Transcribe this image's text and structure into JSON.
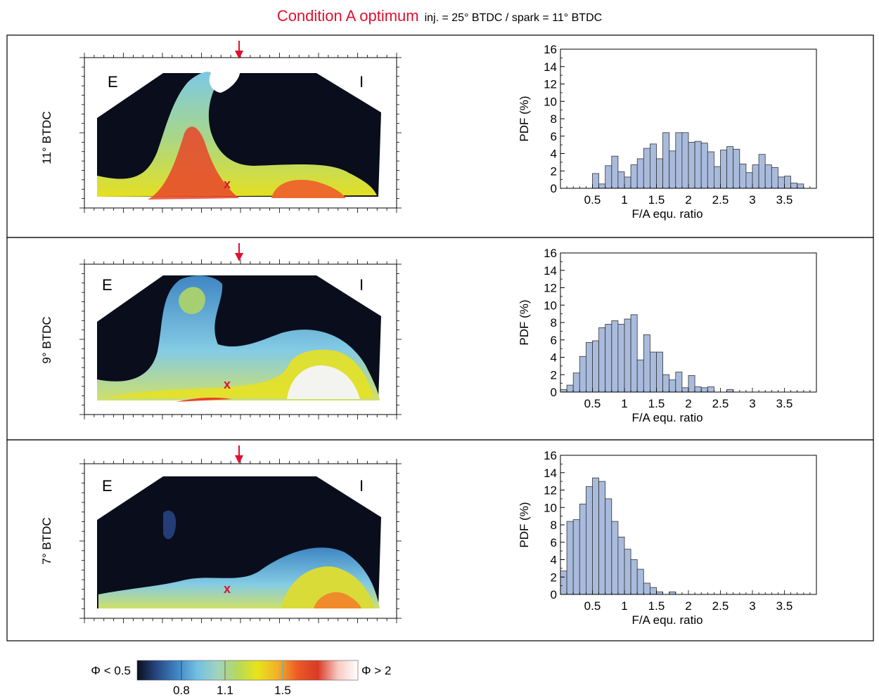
{
  "figure": {
    "title": "Condition A optimum",
    "subtitle": "inj. = 25° BTDC / spark = 11° BTDC",
    "accent_color": "#e0102f",
    "bar_color": "#a9bbdd"
  },
  "panels": [
    {
      "row_label": "11° BTDC",
      "image": {
        "left_marker": "E",
        "right_marker": "I",
        "spark_marker": "x",
        "arrow_icon": "down-arrow-icon"
      },
      "chart_data": {
        "type": "bar",
        "xlabel": "F/A equ. ratio",
        "ylabel": "PDF (%)",
        "ylim": [
          0,
          16
        ],
        "xlim": [
          0,
          4
        ],
        "yticks": [
          "0",
          "2",
          "4",
          "6",
          "8",
          "10",
          "12",
          "14",
          "16"
        ],
        "xticks": [
          "0.5",
          "1",
          "1.5",
          "2",
          "2.5",
          "3",
          "3.5"
        ],
        "bin_width": 0.1,
        "x": [
          0.5,
          0.6,
          0.7,
          0.8,
          0.9,
          1.0,
          1.1,
          1.2,
          1.3,
          1.4,
          1.5,
          1.6,
          1.7,
          1.8,
          1.9,
          2.0,
          2.1,
          2.2,
          2.3,
          2.4,
          2.5,
          2.6,
          2.7,
          2.8,
          2.9,
          3.0,
          3.1,
          3.2,
          3.3,
          3.4,
          3.5,
          3.6,
          3.7
        ],
        "values": [
          1.7,
          0.5,
          2.6,
          3.7,
          1.9,
          1.3,
          2.7,
          3.4,
          4.6,
          5.1,
          3.4,
          6.4,
          4.3,
          6.4,
          6.4,
          5.3,
          5.4,
          5.2,
          4.2,
          2.5,
          4.4,
          4.8,
          4.5,
          2.8,
          1.8,
          2.7,
          3.9,
          2.7,
          2.4,
          1.3,
          1.4,
          0.6,
          0.5
        ]
      }
    },
    {
      "row_label": "9° BTDC",
      "image": {
        "left_marker": "E",
        "right_marker": "I",
        "spark_marker": "x",
        "arrow_icon": "down-arrow-icon"
      },
      "chart_data": {
        "type": "bar",
        "xlabel": "F/A equ. ratio",
        "ylabel": "PDF (%)",
        "ylim": [
          0,
          16
        ],
        "xlim": [
          0,
          4
        ],
        "yticks": [
          "0",
          "2",
          "4",
          "6",
          "8",
          "10",
          "12",
          "14",
          "16"
        ],
        "xticks": [
          "0.5",
          "1",
          "1.5",
          "2",
          "2.5",
          "3",
          "3.5"
        ],
        "bin_width": 0.1,
        "x": [
          0.0,
          0.1,
          0.2,
          0.3,
          0.4,
          0.5,
          0.6,
          0.7,
          0.8,
          0.9,
          1.0,
          1.1,
          1.2,
          1.3,
          1.4,
          1.5,
          1.6,
          1.7,
          1.8,
          1.9,
          2.0,
          2.1,
          2.2,
          2.3,
          2.4,
          2.5,
          2.6
        ],
        "values": [
          0.3,
          0.8,
          2.2,
          4.1,
          5.7,
          5.9,
          7.4,
          7.8,
          8.2,
          7.8,
          8.4,
          8.9,
          3.7,
          6.6,
          4.6,
          4.6,
          2.0,
          1.4,
          2.3,
          0.5,
          1.9,
          0.6,
          0.5,
          0.6,
          0.0,
          0.0,
          0.3
        ]
      }
    },
    {
      "row_label": "7° BTDC",
      "image": {
        "left_marker": "E",
        "right_marker": "I",
        "spark_marker": "x",
        "arrow_icon": "down-arrow-icon"
      },
      "chart_data": {
        "type": "bar",
        "xlabel": "F/A equ. ratio",
        "ylabel": "PDF (%)",
        "ylim": [
          0,
          16
        ],
        "xlim": [
          0,
          4
        ],
        "yticks": [
          "0",
          "2",
          "4",
          "6",
          "8",
          "10",
          "12",
          "14",
          "16"
        ],
        "xticks": [
          "0.5",
          "1",
          "1.5",
          "2",
          "2.5",
          "3",
          "3.5"
        ],
        "bin_width": 0.1,
        "x": [
          0.0,
          0.1,
          0.2,
          0.3,
          0.4,
          0.5,
          0.6,
          0.7,
          0.8,
          0.9,
          1.0,
          1.1,
          1.2,
          1.3,
          1.4,
          1.5,
          1.6,
          1.7
        ],
        "values": [
          2.7,
          8.4,
          8.6,
          10.4,
          12.4,
          13.4,
          13.0,
          11.0,
          8.4,
          6.6,
          5.2,
          4.0,
          2.9,
          1.3,
          0.8,
          0.3,
          0.0,
          0.3
        ]
      }
    }
  ],
  "colorbar": {
    "left_label": "Φ < 0.5",
    "right_label": "Φ > 2",
    "ticks": [
      "0.8",
      "1.1",
      "1.5"
    ],
    "stops": [
      "#0a0e1c",
      "#274a86",
      "#3f86c4",
      "#74c0e2",
      "#9fd3c0",
      "#b6d85c",
      "#e8e41a",
      "#f2b02a",
      "#ec5a26",
      "#d93a26",
      "#f7c9c2",
      "#ffffff"
    ]
  }
}
